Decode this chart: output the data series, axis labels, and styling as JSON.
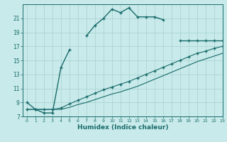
{
  "xlabel": "Humidex (Indice chaleur)",
  "bg_color": "#c8eaea",
  "grid_color": "#a8d0d0",
  "line_color": "#1a6b6b",
  "x_data": [
    0,
    1,
    2,
    3,
    4,
    5,
    6,
    7,
    8,
    9,
    10,
    11,
    12,
    13,
    14,
    15,
    16,
    17,
    18,
    19,
    20,
    21,
    22,
    23
  ],
  "line1_y": [
    9.0,
    8.0,
    7.5,
    7.5,
    14.0,
    16.5,
    null,
    18.5,
    20.0,
    21.0,
    22.3,
    21.8,
    22.5,
    21.2,
    21.2,
    21.2,
    20.8,
    null,
    17.8,
    17.8,
    17.8,
    17.8,
    17.8,
    17.8
  ],
  "line2_y": [
    8.0,
    8.0,
    8.0,
    8.0,
    8.2,
    8.8,
    9.3,
    9.8,
    10.3,
    10.8,
    11.2,
    11.6,
    12.0,
    12.5,
    13.0,
    13.5,
    14.0,
    14.5,
    15.0,
    15.5,
    16.0,
    16.3,
    16.7,
    17.0
  ],
  "line3_y": [
    8.0,
    8.0,
    8.0,
    8.0,
    8.0,
    8.3,
    8.7,
    9.0,
    9.4,
    9.8,
    10.2,
    10.5,
    10.9,
    11.3,
    11.8,
    12.3,
    12.8,
    13.3,
    13.8,
    14.3,
    14.8,
    15.2,
    15.6,
    16.0
  ],
  "ylim": [
    7,
    23
  ],
  "xlim": [
    -0.5,
    23
  ],
  "yticks": [
    7,
    9,
    11,
    13,
    15,
    17,
    19,
    21
  ],
  "xticks": [
    0,
    1,
    2,
    3,
    4,
    5,
    6,
    7,
    8,
    9,
    10,
    11,
    12,
    13,
    14,
    15,
    16,
    17,
    18,
    19,
    20,
    21,
    22,
    23
  ]
}
